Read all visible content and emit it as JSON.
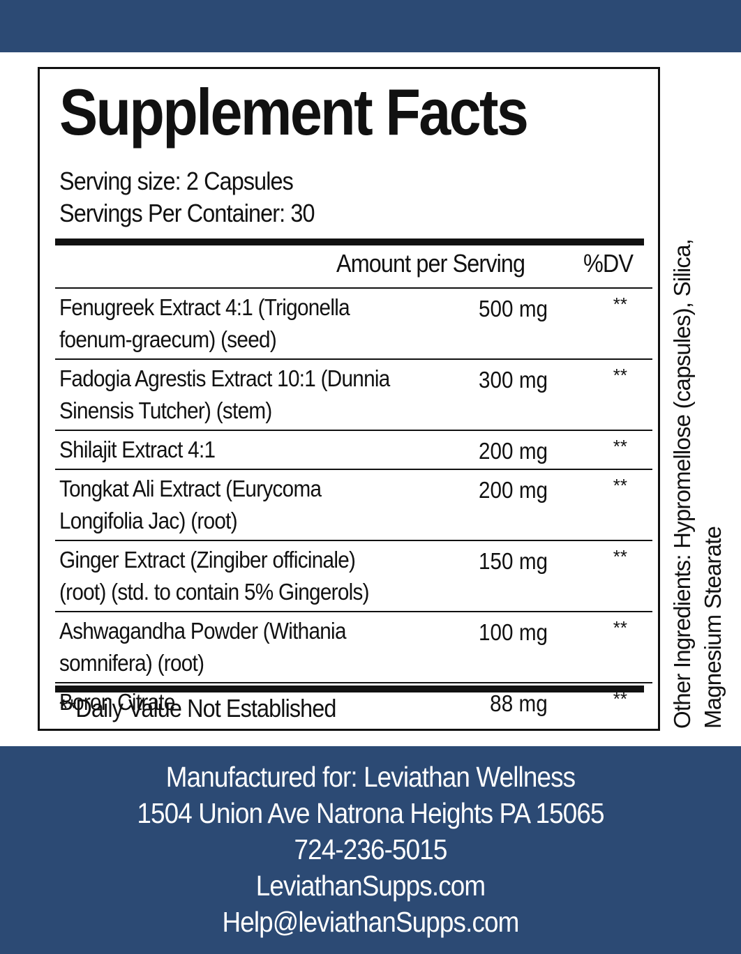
{
  "title": "Supplement Facts",
  "serving_size": "Serving size: 2 Capsules",
  "servings_per_container": "Servings Per Container: 30",
  "table": {
    "columns": [
      "Amount per Serving",
      "%DV"
    ],
    "rows": [
      {
        "name": "Fenugreek Extract 4:1 (Trigonella\nfoenum-graecum) (seed)",
        "amount": "500 mg",
        "dv": "**"
      },
      {
        "name": "Fadogia Agrestis Extract 10:1 (Dunnia\nSinensis Tutcher) (stem)",
        "amount": "300 mg",
        "dv": "**"
      },
      {
        "name": "Shilajit Extract 4:1",
        "amount": "200 mg",
        "dv": "**"
      },
      {
        "name": "Tongkat Ali Extract (Eurycoma\nLongifolia Jac) (root)",
        "amount": "200 mg",
        "dv": "**"
      },
      {
        "name": "Ginger Extract (Zingiber officinale)\n(root) (std. to contain 5% Gingerols)",
        "amount": "150 mg",
        "dv": "**"
      },
      {
        "name": "Ashwagandha Powder (Withania\nsomnifera) (root)",
        "amount": "100 mg",
        "dv": "**"
      },
      {
        "name": "Boron Citrate",
        "amount": "88 mg",
        "dv": "**"
      }
    ]
  },
  "footnote": "**Daily Value Not Established",
  "other_ingredients": "Other Ingredients: Hypromellose (capsules), Silica,\nMagnesium Stearate",
  "footer": {
    "lines": [
      "Manufactured for: Leviathan Wellness",
      "1504 Union Ave Natrona Heights PA 15065",
      "724-236-5015",
      "LeviathanSupps.com",
      "Help@leviathanSupps.com"
    ]
  }
}
